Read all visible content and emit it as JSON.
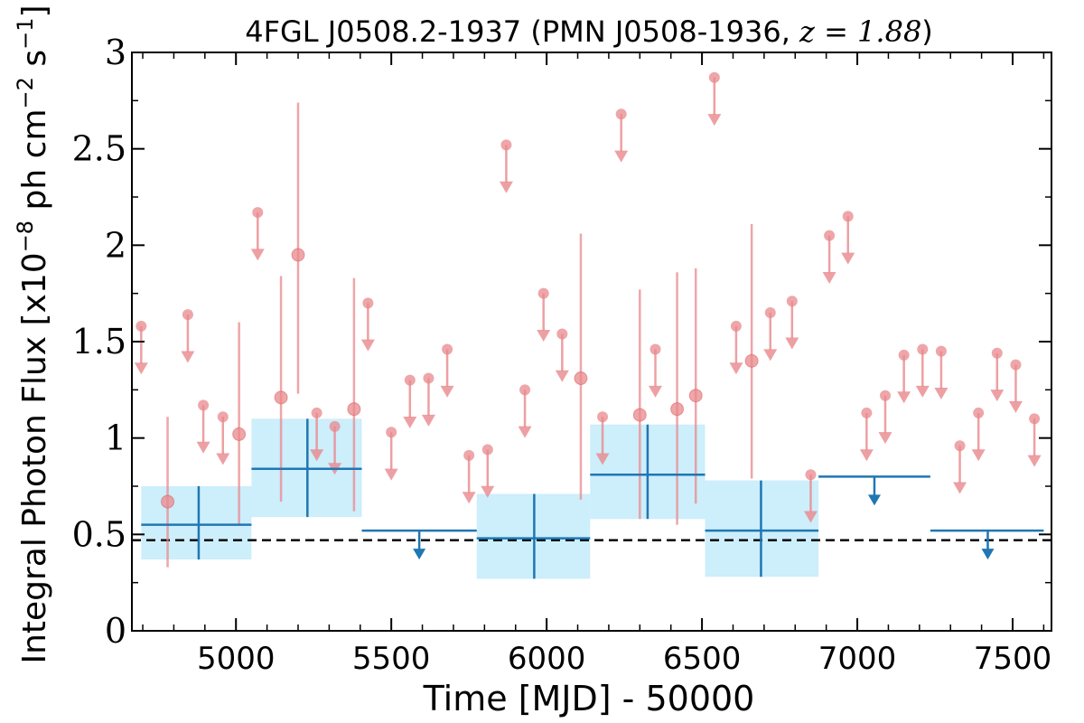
{
  "chart_data": {
    "type": "scatter",
    "title_prefix": "4FGL J0508.2-1937 (PMN J0508-1936, ",
    "title_z": "z = 1.88",
    "title_suffix": ")",
    "xlabel": "Time [MJD] - 50000",
    "ylabel_main": "Integral Photon Flux [x10",
    "ylabel_exp1": "−8",
    "ylabel_mid": " ph cm",
    "ylabel_exp2": "−2",
    "ylabel_mid2": " s",
    "ylabel_exp3": "−1",
    "ylabel_end": "]",
    "xlim": [
      4665,
      7625
    ],
    "ylim": [
      0,
      3
    ],
    "xticks": [
      5000,
      5500,
      6000,
      6500,
      7000,
      7500
    ],
    "yticks": [
      0,
      0.5,
      1,
      1.5,
      2,
      2.5,
      3
    ],
    "ytick_labels": [
      "0",
      "0.5",
      "1",
      "1.5",
      "2",
      "2.5",
      "3"
    ],
    "reference_line": 0.47,
    "colors": {
      "short_bins": "#e8888c",
      "long_bins": "#1f77b4",
      "band": "#cdeefb",
      "reference": "#000000"
    },
    "short_bins_upper_limits": [
      {
        "x": 4695,
        "y": 1.58
      },
      {
        "x": 4845,
        "y": 1.64
      },
      {
        "x": 4895,
        "y": 1.17
      },
      {
        "x": 4958,
        "y": 1.11
      },
      {
        "x": 5070,
        "y": 2.17
      },
      {
        "x": 5260,
        "y": 1.13
      },
      {
        "x": 5318,
        "y": 1.06
      },
      {
        "x": 5425,
        "y": 1.7
      },
      {
        "x": 5500,
        "y": 1.03
      },
      {
        "x": 5560,
        "y": 1.3
      },
      {
        "x": 5620,
        "y": 1.31
      },
      {
        "x": 5680,
        "y": 1.46
      },
      {
        "x": 5750,
        "y": 0.91
      },
      {
        "x": 5810,
        "y": 0.94
      },
      {
        "x": 5870,
        "y": 2.52
      },
      {
        "x": 5930,
        "y": 1.25
      },
      {
        "x": 5990,
        "y": 1.75
      },
      {
        "x": 6050,
        "y": 1.54
      },
      {
        "x": 6180,
        "y": 1.11
      },
      {
        "x": 6240,
        "y": 2.68
      },
      {
        "x": 6350,
        "y": 1.46
      },
      {
        "x": 6540,
        "y": 2.87
      },
      {
        "x": 6610,
        "y": 1.58
      },
      {
        "x": 6720,
        "y": 1.65
      },
      {
        "x": 6790,
        "y": 1.71
      },
      {
        "x": 6850,
        "y": 0.81
      },
      {
        "x": 6910,
        "y": 2.05
      },
      {
        "x": 6970,
        "y": 2.15
      },
      {
        "x": 7030,
        "y": 1.13
      },
      {
        "x": 7090,
        "y": 1.22
      },
      {
        "x": 7150,
        "y": 1.43
      },
      {
        "x": 7210,
        "y": 1.46
      },
      {
        "x": 7270,
        "y": 1.45
      },
      {
        "x": 7330,
        "y": 0.96
      },
      {
        "x": 7390,
        "y": 1.13
      },
      {
        "x": 7450,
        "y": 1.44
      },
      {
        "x": 7510,
        "y": 1.38
      },
      {
        "x": 7570,
        "y": 1.1
      }
    ],
    "short_bins_detections": [
      {
        "x": 4780,
        "y": 0.67,
        "ylo": 0.33,
        "yhi": 1.11
      },
      {
        "x": 5010,
        "y": 1.02,
        "ylo": 0.55,
        "yhi": 1.6
      },
      {
        "x": 5145,
        "y": 1.21,
        "ylo": 0.67,
        "yhi": 1.84
      },
      {
        "x": 5200,
        "y": 1.95,
        "ylo": 1.23,
        "yhi": 2.74
      },
      {
        "x": 5380,
        "y": 1.15,
        "ylo": 0.62,
        "yhi": 1.83
      },
      {
        "x": 6110,
        "y": 1.31,
        "ylo": 0.68,
        "yhi": 2.06
      },
      {
        "x": 6300,
        "y": 1.12,
        "ylo": 0.58,
        "yhi": 1.77
      },
      {
        "x": 6420,
        "y": 1.15,
        "ylo": 0.55,
        "yhi": 1.86
      },
      {
        "x": 6480,
        "y": 1.22,
        "ylo": 0.66,
        "yhi": 1.88
      },
      {
        "x": 6660,
        "y": 1.4,
        "ylo": 0.79,
        "yhi": 2.11
      }
    ],
    "long_bins_detections": [
      {
        "x": 4880,
        "xlo": 4695,
        "xhi": 5050,
        "y": 0.55,
        "ylo": 0.37,
        "yhi": 0.75
      },
      {
        "x": 5230,
        "xlo": 5050,
        "xhi": 5405,
        "y": 0.84,
        "ylo": 0.59,
        "yhi": 1.1
      },
      {
        "x": 5960,
        "xlo": 5775,
        "xhi": 6140,
        "y": 0.48,
        "ylo": 0.27,
        "yhi": 0.71
      },
      {
        "x": 6325,
        "xlo": 6140,
        "xhi": 6510,
        "y": 0.81,
        "ylo": 0.58,
        "yhi": 1.07
      },
      {
        "x": 6690,
        "xlo": 6510,
        "xhi": 6875,
        "y": 0.52,
        "ylo": 0.28,
        "yhi": 0.78
      }
    ],
    "long_bins_upper_limits": [
      {
        "x": 5590,
        "xlo": 5405,
        "xhi": 5775,
        "y": 0.52
      },
      {
        "x": 7055,
        "xlo": 6875,
        "xhi": 7235,
        "y": 0.8
      },
      {
        "x": 7420,
        "xlo": 7235,
        "xhi": 7600,
        "y": 0.52
      }
    ]
  }
}
